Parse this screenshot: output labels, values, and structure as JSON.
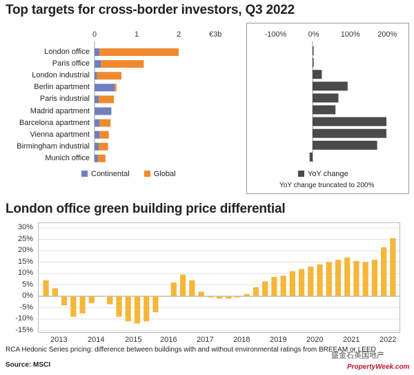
{
  "chart_data": [
    {
      "type": "bar",
      "orientation": "horizontal",
      "stacked": true,
      "title": "Top targets for cross-border investors, Q3 2022",
      "unit_label": "€3b",
      "xticks": [
        "0",
        "1",
        "2"
      ],
      "xlim": [
        0,
        3
      ],
      "categories": [
        "London office",
        "Paris office",
        "London industrial",
        "Berlin apartment",
        "Paris industrial",
        "Madrid apartment",
        "Barcelona apartment",
        "Vienna apartment",
        "Birmingham industrial",
        "Munich office"
      ],
      "series": [
        {
          "name": "Continental",
          "color": "#6f7fc0",
          "values": [
            0.12,
            0.15,
            0.06,
            0.48,
            0.1,
            0.4,
            0.12,
            0.12,
            0.1,
            0.08
          ]
        },
        {
          "name": "Global",
          "color": "#ef8a2e",
          "values": [
            1.88,
            1.02,
            0.58,
            0.04,
            0.36,
            0.0,
            0.26,
            0.22,
            0.22,
            0.18
          ]
        }
      ],
      "legend_position": "bottom"
    },
    {
      "type": "bar",
      "orientation": "horizontal",
      "xticks": [
        "-100%",
        "0%",
        "100%",
        "200%"
      ],
      "xlim": [
        -150,
        230
      ],
      "categories": [
        "London office",
        "Paris office",
        "London industrial",
        "Berlin apartment",
        "Paris industrial",
        "Madrid apartment",
        "Barcelona apartment",
        "Vienna apartment",
        "Birmingham industrial",
        "Munich office"
      ],
      "series": [
        {
          "name": "YoY change",
          "color": "#4a4a4a",
          "values": [
            2,
            2,
            25,
            95,
            70,
            62,
            200,
            200,
            175,
            -8
          ]
        }
      ],
      "note": "YoY change truncated to 200%",
      "legend_position": "bottom"
    },
    {
      "type": "bar",
      "title": "London office green building price differential",
      "yticks": [
        "30%",
        "25%",
        "20%",
        "15%",
        "10%",
        "5%",
        "0%",
        "-5%",
        "-10%",
        "-15%"
      ],
      "ylim": [
        -15,
        30
      ],
      "xticks": [
        "2013",
        "2014",
        "2015",
        "2016",
        "2017",
        "2018",
        "2019",
        "2020",
        "2021",
        "2022"
      ],
      "color": "#f5b63a",
      "values": [
        7,
        3.5,
        -4,
        -9,
        -7.5,
        -3,
        0,
        -3.5,
        -9,
        -11,
        -12,
        -11,
        -7,
        0,
        6,
        9.5,
        7,
        2,
        -0.5,
        -1,
        -1,
        -0.5,
        1,
        4,
        6.5,
        8.5,
        9,
        11,
        12,
        13,
        14,
        15,
        16,
        17,
        15.5,
        15,
        16,
        21.5,
        25.5
      ],
      "note": "RCA Hedonic Series pricing: difference between buildings with and without environmental ratings from BREEAM or LEED"
    }
  ],
  "source": "Source: MSCI",
  "brand": "PropertyWeek.com",
  "watermark": "盛金石英国地产"
}
